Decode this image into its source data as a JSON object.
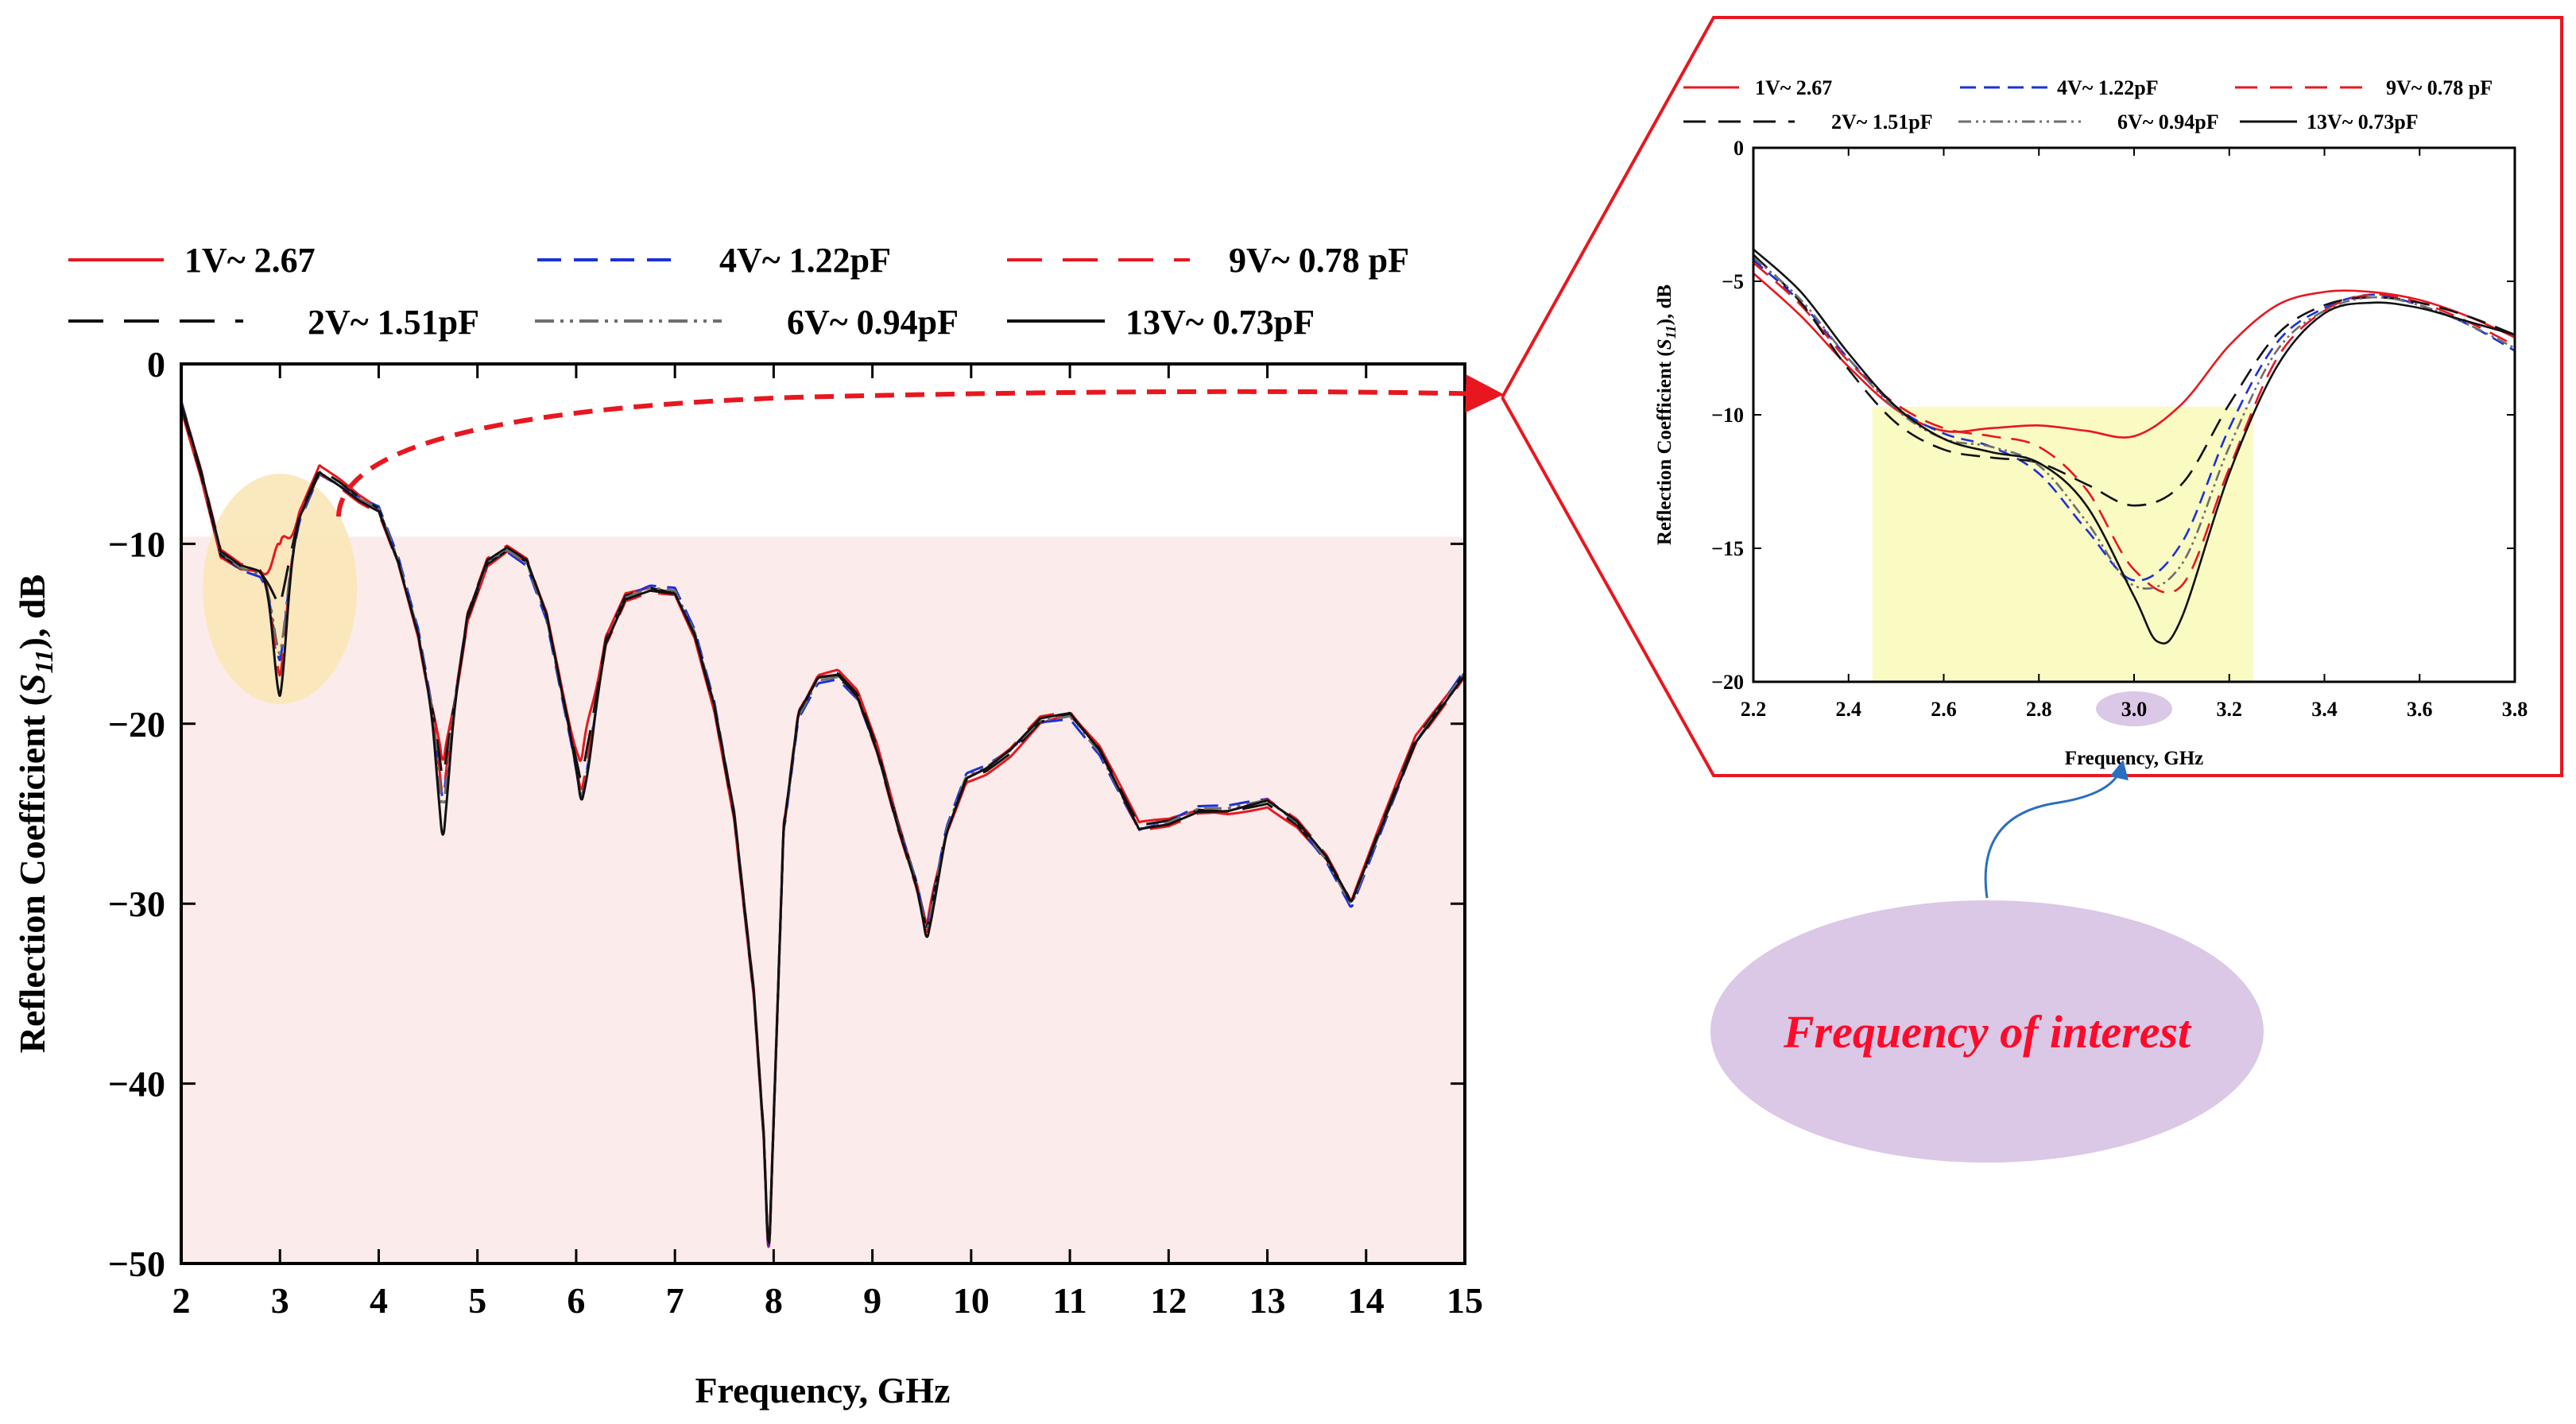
{
  "colors": {
    "red": "#e8171f",
    "blue": "#1c31d6",
    "black": "#111111",
    "gray": "#6e6e6e",
    "pink_band": "#fcebeb",
    "yellow_band": "#fafac3",
    "yellow_circle": "#f9e7b7",
    "ellipse": "#dbc7e6",
    "foi_text": "#ff0a2a"
  },
  "chart_data": [
    {
      "id": "main",
      "type": "line",
      "title": "",
      "xlabel": "Frequency, GHz",
      "ylabel_parts": [
        "Reflection Coefficient (",
        "S",
        "11",
        "), dB"
      ],
      "xlim": [
        2,
        15
      ],
      "ylim": [
        -50,
        0
      ],
      "xticks": [
        2,
        3,
        4,
        5,
        6,
        7,
        8,
        9,
        10,
        11,
        12,
        13,
        14,
        15
      ],
      "yticks": [
        0,
        -10,
        -20,
        -30,
        -40,
        -50
      ],
      "ytick_labels": [
        "0",
        "−10",
        "−20",
        "−30",
        "−40",
        "−50"
      ],
      "shaded_region": {
        "y_from": -50,
        "y_to": -9.6
      },
      "highlight_circle": {
        "x_center": 3.0,
        "y_center": -12.5,
        "x_radius": 0.78,
        "y_radius": 6.4
      },
      "legend": [
        {
          "label": "1V~ 2.67",
          "color": "#e8171f",
          "dash": "solid"
        },
        {
          "label": "4V~ 1.22pF",
          "color": "#1c31d6",
          "dash": "dash"
        },
        {
          "label": "9V~ 0.78 pF",
          "color": "#e8171f",
          "dash": "longdash"
        },
        {
          "label": "2V~ 1.51pF",
          "color": "#111111",
          "dash": "longdash"
        },
        {
          "label": "6V~ 0.94pF",
          "color": "#6e6e6e",
          "dash": "dashdotdot"
        },
        {
          "label": "13V~ 0.73pF",
          "color": "#111111",
          "dash": "solid"
        }
      ],
      "base_curve": {
        "x": [
          2.0,
          2.2,
          2.4,
          2.6,
          2.8,
          3.0,
          3.2,
          3.4,
          3.6,
          3.8,
          4.0,
          4.2,
          4.4,
          4.55,
          4.65,
          4.75,
          4.9,
          5.1,
          5.3,
          5.5,
          5.7,
          5.9,
          6.05,
          6.15,
          6.3,
          6.5,
          6.75,
          7.0,
          7.2,
          7.4,
          7.6,
          7.8,
          7.9,
          7.95,
          8.0,
          8.1,
          8.25,
          8.45,
          8.65,
          8.85,
          9.05,
          9.25,
          9.45,
          9.55,
          9.62,
          9.75,
          9.95,
          10.15,
          10.4,
          10.7,
          11.0,
          11.3,
          11.7,
          12.0,
          12.3,
          12.6,
          13.0,
          13.3,
          13.6,
          13.85,
          14.1,
          14.5,
          15.0
        ],
        "y": [
          -2.2,
          -6.0,
          -10.5,
          -11.3,
          -11.6,
          -13.0,
          -8.5,
          -6.0,
          -6.7,
          -7.5,
          -8.1,
          -11.0,
          -15.0,
          -19.5,
          -24.0,
          -19.5,
          -14.0,
          -11.0,
          -10.3,
          -11.0,
          -14.0,
          -19.5,
          -23.5,
          -20.5,
          -15.5,
          -13.0,
          -12.5,
          -12.7,
          -15.0,
          -19.0,
          -25.0,
          -35.0,
          -43.0,
          -50.0,
          -42.0,
          -26.0,
          -19.5,
          -17.5,
          -17.3,
          -18.5,
          -21.5,
          -25.5,
          -29.0,
          -31.5,
          -29.5,
          -26.0,
          -23.0,
          -22.5,
          -21.5,
          -19.8,
          -19.5,
          -21.5,
          -25.8,
          -25.5,
          -24.8,
          -24.8,
          -24.3,
          -25.5,
          -27.5,
          -30.0,
          -26.5,
          -21.0,
          -17.2
        ]
      },
      "series": [
        {
          "name": "1V~ 2.67",
          "color": "#e8171f",
          "dash": "solid",
          "width": 3,
          "dips": [
            3.0,
            2.8,
            4.65,
            2.0,
            6.1,
            1.3,
            9.6,
            0.4
          ],
          "amp": 0.35
        },
        {
          "name": "4V~ 1.22pF",
          "color": "#1c31d6",
          "dash": "dash",
          "width": 3,
          "dips": [
            3.0,
            -3.2,
            4.65,
            -0.6,
            6.1,
            -0.7,
            9.6,
            -0.2
          ],
          "amp": -0.25
        },
        {
          "name": "9V~ 0.78 pF",
          "color": "#e8171f",
          "dash": "longdash",
          "width": 3,
          "dips": [
            3.0,
            -4.4,
            4.65,
            -0.2,
            6.1,
            -0.4,
            9.6,
            -0.1
          ],
          "amp": 0.2
        },
        {
          "name": "2V~ 1.51pF",
          "color": "#111111",
          "dash": "longdash",
          "width": 3,
          "dips": [
            3.0,
            -0.5,
            4.65,
            0.9,
            6.1,
            0.2,
            9.6,
            0.0
          ],
          "amp": -0.15
        },
        {
          "name": "6V~ 0.94pF",
          "color": "#6e6e6e",
          "dash": "dashdotdot",
          "width": 3,
          "dips": [
            3.0,
            -3.0,
            4.65,
            -1.0,
            6.1,
            -0.9,
            9.6,
            -0.3
          ],
          "amp": 0.1
        },
        {
          "name": "13V~ 0.73pF",
          "color": "#111111",
          "dash": "solid",
          "width": 3,
          "dips": [
            3.0,
            -5.5,
            4.65,
            -2.5,
            6.1,
            -1.2,
            9.6,
            -0.6
          ],
          "amp": -0.1
        }
      ]
    },
    {
      "id": "zoom",
      "type": "line",
      "title": "",
      "xlabel": "Frequency, GHz",
      "ylabel_parts": [
        "Reflection Coefficient (",
        "S",
        "11",
        "), dB"
      ],
      "xlim": [
        2.2,
        3.8
      ],
      "ylim": [
        -20,
        0
      ],
      "xticks": [
        2.2,
        2.4,
        2.6,
        2.8,
        3.0,
        3.2,
        3.4,
        3.6,
        3.8
      ],
      "xtick_labels": [
        "2.2",
        "2.4",
        "2.6",
        "2.8",
        "3.0",
        "3.2",
        "3.4",
        "3.6",
        "3.8"
      ],
      "yticks": [
        0,
        -5,
        -10,
        -15,
        -20
      ],
      "ytick_labels": [
        "0",
        "−5",
        "−10",
        "−15",
        "−20"
      ],
      "shaded_region": {
        "x_from": 2.45,
        "x_to": 3.25,
        "y_from": -20,
        "y_to": -9.7
      },
      "highlighted_tick": "3.0",
      "legend": [
        {
          "label": "1V~ 2.67",
          "color": "#e8171f",
          "dash": "solid"
        },
        {
          "label": "4V~ 1.22pF",
          "color": "#1c31d6",
          "dash": "dash"
        },
        {
          "label": "9V~ 0.78 pF",
          "color": "#e8171f",
          "dash": "longdash"
        },
        {
          "label": "2V~ 1.51pF",
          "color": "#111111",
          "dash": "longdash"
        },
        {
          "label": "6V~ 0.94pF",
          "color": "#6e6e6e",
          "dash": "dashdotdot"
        },
        {
          "label": "13V~ 0.73pF",
          "color": "#111111",
          "dash": "solid"
        }
      ],
      "series": [
        {
          "name": "1V~ 2.67",
          "color": "#e8171f",
          "dash": "solid",
          "x": [
            2.2,
            2.3,
            2.4,
            2.5,
            2.6,
            2.7,
            2.8,
            2.9,
            3.0,
            3.1,
            3.2,
            3.3,
            3.4,
            3.5,
            3.6,
            3.7,
            3.8
          ],
          "y": [
            -4.7,
            -6.3,
            -8.2,
            -9.8,
            -10.6,
            -10.5,
            -10.4,
            -10.6,
            -10.8,
            -9.6,
            -7.4,
            -5.9,
            -5.4,
            -5.4,
            -5.7,
            -6.3,
            -7.1
          ]
        },
        {
          "name": "4V~ 1.22pF",
          "color": "#1c31d6",
          "dash": "dash",
          "x": [
            2.2,
            2.3,
            2.4,
            2.5,
            2.6,
            2.7,
            2.8,
            2.9,
            3.0,
            3.1,
            3.2,
            3.3,
            3.4,
            3.5,
            3.6,
            3.7,
            3.8
          ],
          "y": [
            -4.2,
            -5.8,
            -7.9,
            -9.7,
            -10.7,
            -11.2,
            -12.2,
            -14.3,
            -16.2,
            -14.8,
            -10.5,
            -7.3,
            -6.0,
            -5.5,
            -5.9,
            -6.6,
            -7.6
          ]
        },
        {
          "name": "9V~ 0.78 pF",
          "color": "#e8171f",
          "dash": "longdash",
          "x": [
            2.2,
            2.3,
            2.4,
            2.5,
            2.6,
            2.7,
            2.8,
            2.9,
            3.0,
            3.1,
            3.2,
            3.3,
            3.4,
            3.5,
            3.6,
            3.7,
            3.8
          ],
          "y": [
            -4.3,
            -5.9,
            -8.0,
            -9.6,
            -10.5,
            -10.8,
            -11.2,
            -12.8,
            -15.8,
            -16.4,
            -12.0,
            -7.9,
            -6.1,
            -5.5,
            -5.8,
            -6.5,
            -7.4
          ]
        },
        {
          "name": "2V~ 1.51pF",
          "color": "#111111",
          "dash": "longdash",
          "x": [
            2.2,
            2.3,
            2.4,
            2.5,
            2.6,
            2.7,
            2.8,
            2.9,
            3.0,
            3.1,
            3.2,
            3.3,
            3.4,
            3.5,
            3.6,
            3.7,
            3.8
          ],
          "y": [
            -4.0,
            -5.8,
            -8.3,
            -10.3,
            -11.3,
            -11.6,
            -11.8,
            -12.6,
            -13.4,
            -12.6,
            -9.6,
            -7.0,
            -5.9,
            -5.6,
            -5.8,
            -6.3,
            -7.0
          ]
        },
        {
          "name": "6V~ 0.94pF",
          "color": "#6e6e6e",
          "dash": "dashdotdot",
          "x": [
            2.2,
            2.3,
            2.4,
            2.5,
            2.6,
            2.7,
            2.8,
            2.9,
            3.0,
            3.1,
            3.2,
            3.3,
            3.4,
            3.5,
            3.6,
            3.7,
            3.8
          ],
          "y": [
            -4.1,
            -5.7,
            -7.9,
            -9.8,
            -10.9,
            -11.2,
            -11.9,
            -14.0,
            -16.4,
            -15.6,
            -11.2,
            -7.6,
            -6.1,
            -5.6,
            -5.9,
            -6.6,
            -7.5
          ]
        },
        {
          "name": "13V~ 0.73pF",
          "color": "#111111",
          "dash": "solid",
          "x": [
            2.2,
            2.3,
            2.4,
            2.5,
            2.6,
            2.7,
            2.8,
            2.9,
            3.0,
            3.05,
            3.1,
            3.2,
            3.3,
            3.4,
            3.5,
            3.6,
            3.7,
            3.8
          ],
          "y": [
            -3.8,
            -5.4,
            -7.7,
            -9.7,
            -10.9,
            -11.4,
            -11.8,
            -13.4,
            -16.8,
            -18.5,
            -17.6,
            -12.2,
            -8.2,
            -6.2,
            -5.8,
            -6.0,
            -6.5,
            -7.0
          ]
        }
      ]
    }
  ],
  "annotation": {
    "label": "Frequency of interest"
  }
}
